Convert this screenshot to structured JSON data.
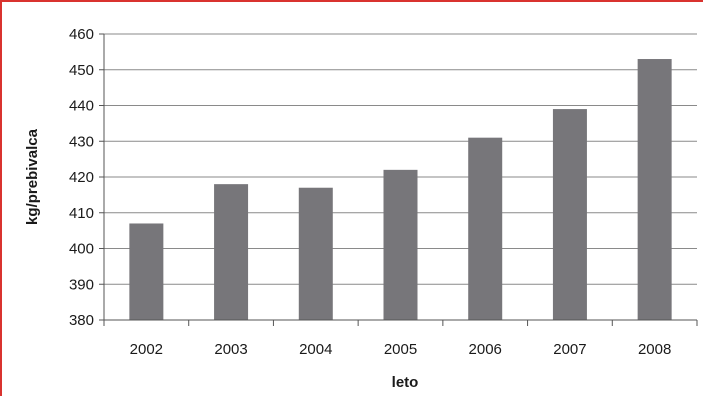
{
  "chart_data": {
    "type": "bar",
    "categories": [
      "2002",
      "2003",
      "2004",
      "2005",
      "2006",
      "2007",
      "2008"
    ],
    "values": [
      407,
      418,
      417,
      422,
      431,
      439,
      453
    ],
    "xlabel": "leto",
    "ylabel": "kg/prebivalca",
    "ylim": [
      380,
      460
    ],
    "yticks": [
      "380",
      "390",
      "400",
      "410",
      "420",
      "430",
      "440",
      "450",
      "460"
    ],
    "grid": true,
    "colors": {
      "bar": "#77767a",
      "grid": "#8a8a8a",
      "frame": "#d9332f"
    }
  }
}
